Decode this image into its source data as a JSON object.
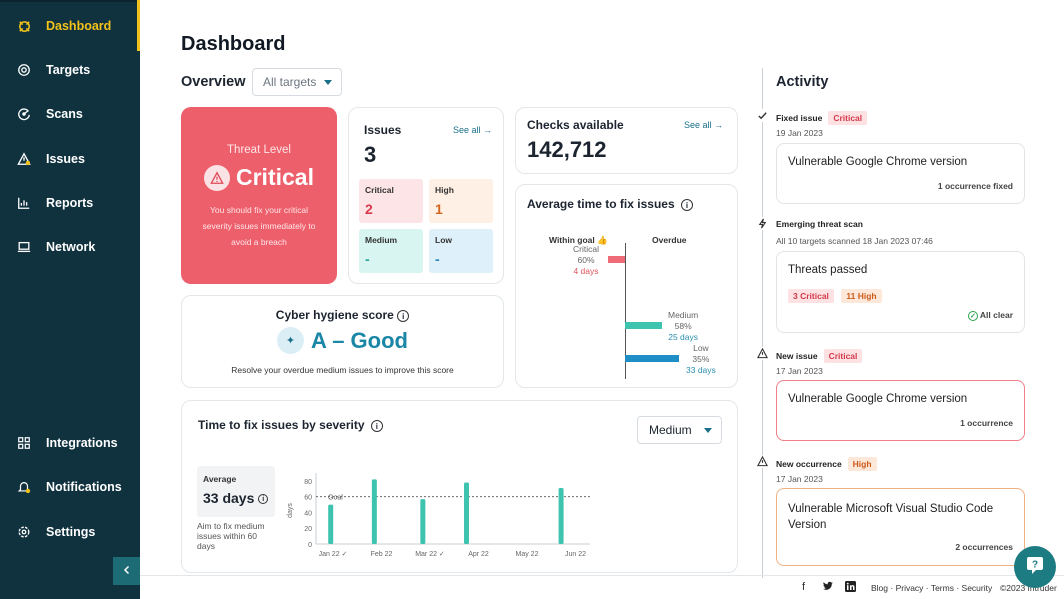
{
  "sidebar": {
    "items": [
      {
        "label": "Dashboard",
        "icon": "dashboard-icon"
      },
      {
        "label": "Targets",
        "icon": "targets-icon"
      },
      {
        "label": "Scans",
        "icon": "scans-icon"
      },
      {
        "label": "Issues",
        "icon": "issues-icon"
      },
      {
        "label": "Reports",
        "icon": "reports-icon"
      },
      {
        "label": "Network",
        "icon": "network-icon"
      },
      {
        "label": "Integrations",
        "icon": "integrations-icon"
      },
      {
        "label": "Notifications",
        "icon": "notifications-icon"
      },
      {
        "label": "Settings",
        "icon": "settings-icon"
      }
    ]
  },
  "page_title": "Dashboard",
  "overview": {
    "title": "Overview",
    "targets_select": "All targets"
  },
  "threat": {
    "label": "Threat Level",
    "level": "Critical",
    "message": "You should fix your critical severity issues immediately to avoid a breach"
  },
  "issues": {
    "title": "Issues",
    "see_all": "See all",
    "count": "3",
    "severities": [
      {
        "label": "Critical",
        "value": "2",
        "bg": "#fde4e6",
        "color": "#d83a4a"
      },
      {
        "label": "High",
        "value": "1",
        "bg": "#fef0e4",
        "color": "#d5651f"
      },
      {
        "label": "Medium",
        "value": "-",
        "bg": "#d9f5f1",
        "color": "#2aa598"
      },
      {
        "label": "Low",
        "value": "-",
        "bg": "#def1fa",
        "color": "#2a86b8"
      }
    ]
  },
  "checks": {
    "title": "Checks available",
    "see_all": "See all",
    "count": "142,712"
  },
  "avg_time": {
    "title": "Average time to fix issues",
    "within_goal": "Within goal",
    "overdue": "Overdue",
    "rows": [
      {
        "label": "Critical",
        "pct": "60%",
        "days": "4 days"
      },
      {
        "label": "Medium",
        "pct": "58%",
        "days": "25 days"
      },
      {
        "label": "Low",
        "pct": "35%",
        "days": "33 days"
      }
    ]
  },
  "hygiene": {
    "title": "Cyber hygiene score",
    "score": "A – Good",
    "message": "Resolve your overdue medium issues to improve this score"
  },
  "ttf": {
    "title": "Time to fix issues by severity",
    "severity_select": "Medium",
    "avg_label": "Average",
    "avg_value": "33 days",
    "aim_text": "Aim to fix medium issues within 60 days"
  },
  "chart_data": {
    "type": "bar",
    "categories": [
      "Jan 22",
      "Feb 22",
      "Mar 22",
      "Apr 22",
      "May 22",
      "Jun 22"
    ],
    "tick_labels": [
      "Jan 22 ✓",
      "Feb 22",
      "Mar 22 ✓",
      "Apr 22",
      "May 22",
      "Jun 22"
    ],
    "bars": [
      {
        "x": 0.2,
        "value": 50
      },
      {
        "x": 1.1,
        "value": 82
      },
      {
        "x": 2.1,
        "value": 57
      },
      {
        "x": 3.0,
        "value": 78
      },
      {
        "x": 4.95,
        "value": 71
      }
    ],
    "ylabel": "days",
    "yticks": [
      0,
      20,
      40,
      60,
      80
    ],
    "ylim": [
      0,
      85
    ],
    "goal": 60,
    "goal_label": "Goal",
    "bar_color": "#3dc3ae"
  },
  "activity": {
    "title": "Activity",
    "events": [
      {
        "icon": "check-icon",
        "title": "Fixed issue",
        "tag": "Critical",
        "tag_class": "critical",
        "date": "19 Jan 2023",
        "card_title": "Vulnerable Google Chrome version",
        "card_note": "1 occurrence fixed"
      },
      {
        "icon": "bolt-icon",
        "title": "Emerging threat scan",
        "date": "All 10 targets scanned 18 Jan 2023 07:46",
        "card_title": "Threats passed",
        "badges": [
          "3 Critical",
          "11 High"
        ],
        "card_note": "All clear"
      },
      {
        "icon": "warning-icon",
        "title": "New issue",
        "tag": "Critical",
        "tag_class": "critical",
        "date": "17 Jan 2023",
        "card_title": "Vulnerable Google Chrome version",
        "card_note": "1 occurrence"
      },
      {
        "icon": "warning-icon",
        "title": "New occurrence",
        "tag": "High",
        "tag_class": "high",
        "date": "17 Jan 2023",
        "card_title": "Vulnerable Microsoft Visual Studio Code Version",
        "card_note": "2 occurrences"
      }
    ]
  },
  "footer": {
    "links": "Blog · Privacy · Terms · Security",
    "copyright": "©2023 Intruder"
  }
}
